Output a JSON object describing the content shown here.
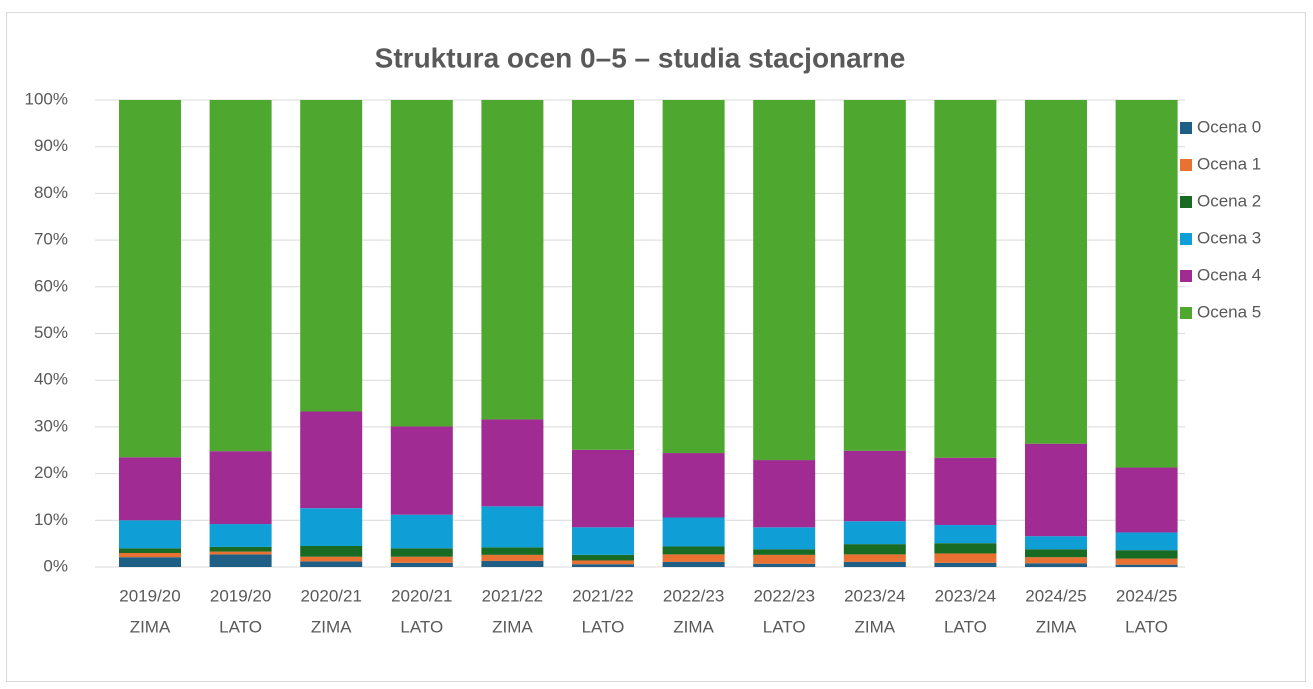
{
  "chart_data": {
    "type": "stacked_bar_percent",
    "title": "Struktura ocen 0–5 – studia stacjonarne",
    "categories": [
      [
        "2019/20",
        "ZIMA"
      ],
      [
        "2019/20",
        "LATO"
      ],
      [
        "2020/21",
        "ZIMA"
      ],
      [
        "2020/21",
        "LATO"
      ],
      [
        "2021/22",
        "ZIMA"
      ],
      [
        "2021/22",
        "LATO"
      ],
      [
        "2022/23",
        "ZIMA"
      ],
      [
        "2022/23",
        "LATO"
      ],
      [
        "2023/24",
        "ZIMA"
      ],
      [
        "2023/24",
        "LATO"
      ],
      [
        "2024/25",
        "ZIMA"
      ],
      [
        "2024/25",
        "LATO"
      ]
    ],
    "series": [
      {
        "name": "Ocena 0",
        "color": "#1f5f86",
        "values": [
          2.1,
          2.7,
          1.2,
          0.9,
          1.3,
          0.6,
          1.1,
          0.7,
          1.1,
          0.9,
          0.8,
          0.5
        ]
      },
      {
        "name": "Ocena 1",
        "color": "#e97132",
        "values": [
          0.9,
          0.6,
          1.0,
          1.3,
          1.3,
          0.8,
          1.6,
          1.9,
          1.6,
          2.0,
          1.3,
          1.3
        ]
      },
      {
        "name": "Ocena 2",
        "color": "#196b24",
        "values": [
          1.0,
          1.0,
          2.3,
          1.8,
          1.6,
          1.2,
          1.7,
          1.2,
          2.2,
          2.2,
          1.7,
          1.8
        ]
      },
      {
        "name": "Ocena 3",
        "color": "#0f9ed5",
        "values": [
          6.0,
          4.9,
          8.1,
          7.2,
          8.8,
          5.9,
          6.2,
          4.7,
          4.9,
          3.9,
          2.8,
          3.8
        ]
      },
      {
        "name": "Ocena 4",
        "color": "#a02b93",
        "values": [
          13.5,
          15.6,
          20.7,
          18.9,
          18.6,
          16.6,
          13.8,
          14.4,
          15.1,
          14.4,
          19.8,
          13.9
        ]
      },
      {
        "name": "Ocena 5",
        "color": "#4ea72e",
        "values": [
          76.5,
          75.2,
          66.7,
          69.9,
          68.4,
          74.9,
          75.6,
          77.1,
          75.1,
          76.6,
          73.6,
          78.7
        ]
      }
    ],
    "ylim": [
      0,
      100
    ],
    "yticks": [
      {
        "value": 0,
        "label": "0%"
      },
      {
        "value": 10,
        "label": "10%"
      },
      {
        "value": 20,
        "label": "20%"
      },
      {
        "value": 30,
        "label": "30%"
      },
      {
        "value": 40,
        "label": "40%"
      },
      {
        "value": 50,
        "label": "50%"
      },
      {
        "value": 60,
        "label": "60%"
      },
      {
        "value": 70,
        "label": "70%"
      },
      {
        "value": 80,
        "label": "80%"
      },
      {
        "value": 90,
        "label": "90%"
      },
      {
        "value": 100,
        "label": "100%"
      }
    ],
    "grid": true,
    "legend": "right"
  }
}
